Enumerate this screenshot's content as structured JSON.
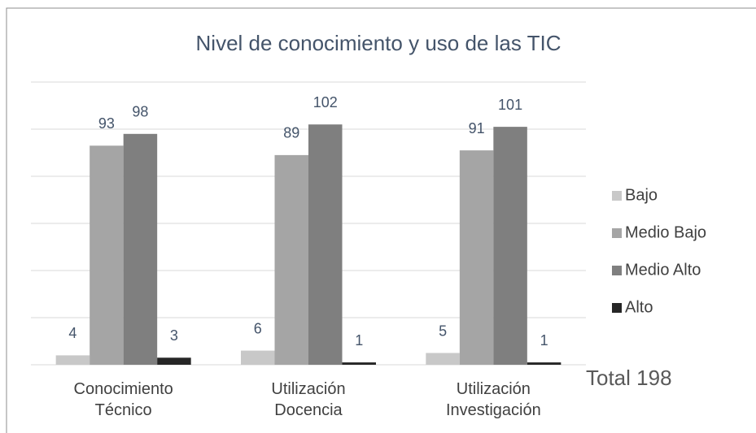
{
  "chart_data": {
    "type": "bar",
    "title": "Nivel de conocimiento y uso de las TIC",
    "categories": [
      "Conocimiento Técnico",
      "Utilización Docencia",
      "Utilización Investigación"
    ],
    "series": [
      {
        "name": "Bajo",
        "color": "#c8c8c8",
        "values": [
          4,
          6,
          5
        ]
      },
      {
        "name": "Medio Bajo",
        "color": "#a5a5a5",
        "values": [
          93,
          89,
          91
        ]
      },
      {
        "name": "Medio Alto",
        "color": "#7f7f7f",
        "values": [
          98,
          102,
          101
        ]
      },
      {
        "name": "Alto",
        "color": "#262626",
        "values": [
          3,
          1,
          1
        ]
      }
    ],
    "ylim": [
      0,
      120
    ],
    "yticks": [
      0,
      20,
      40,
      60,
      80,
      100,
      120
    ],
    "grid": true,
    "legend": "right",
    "annotation": "Total 198"
  }
}
